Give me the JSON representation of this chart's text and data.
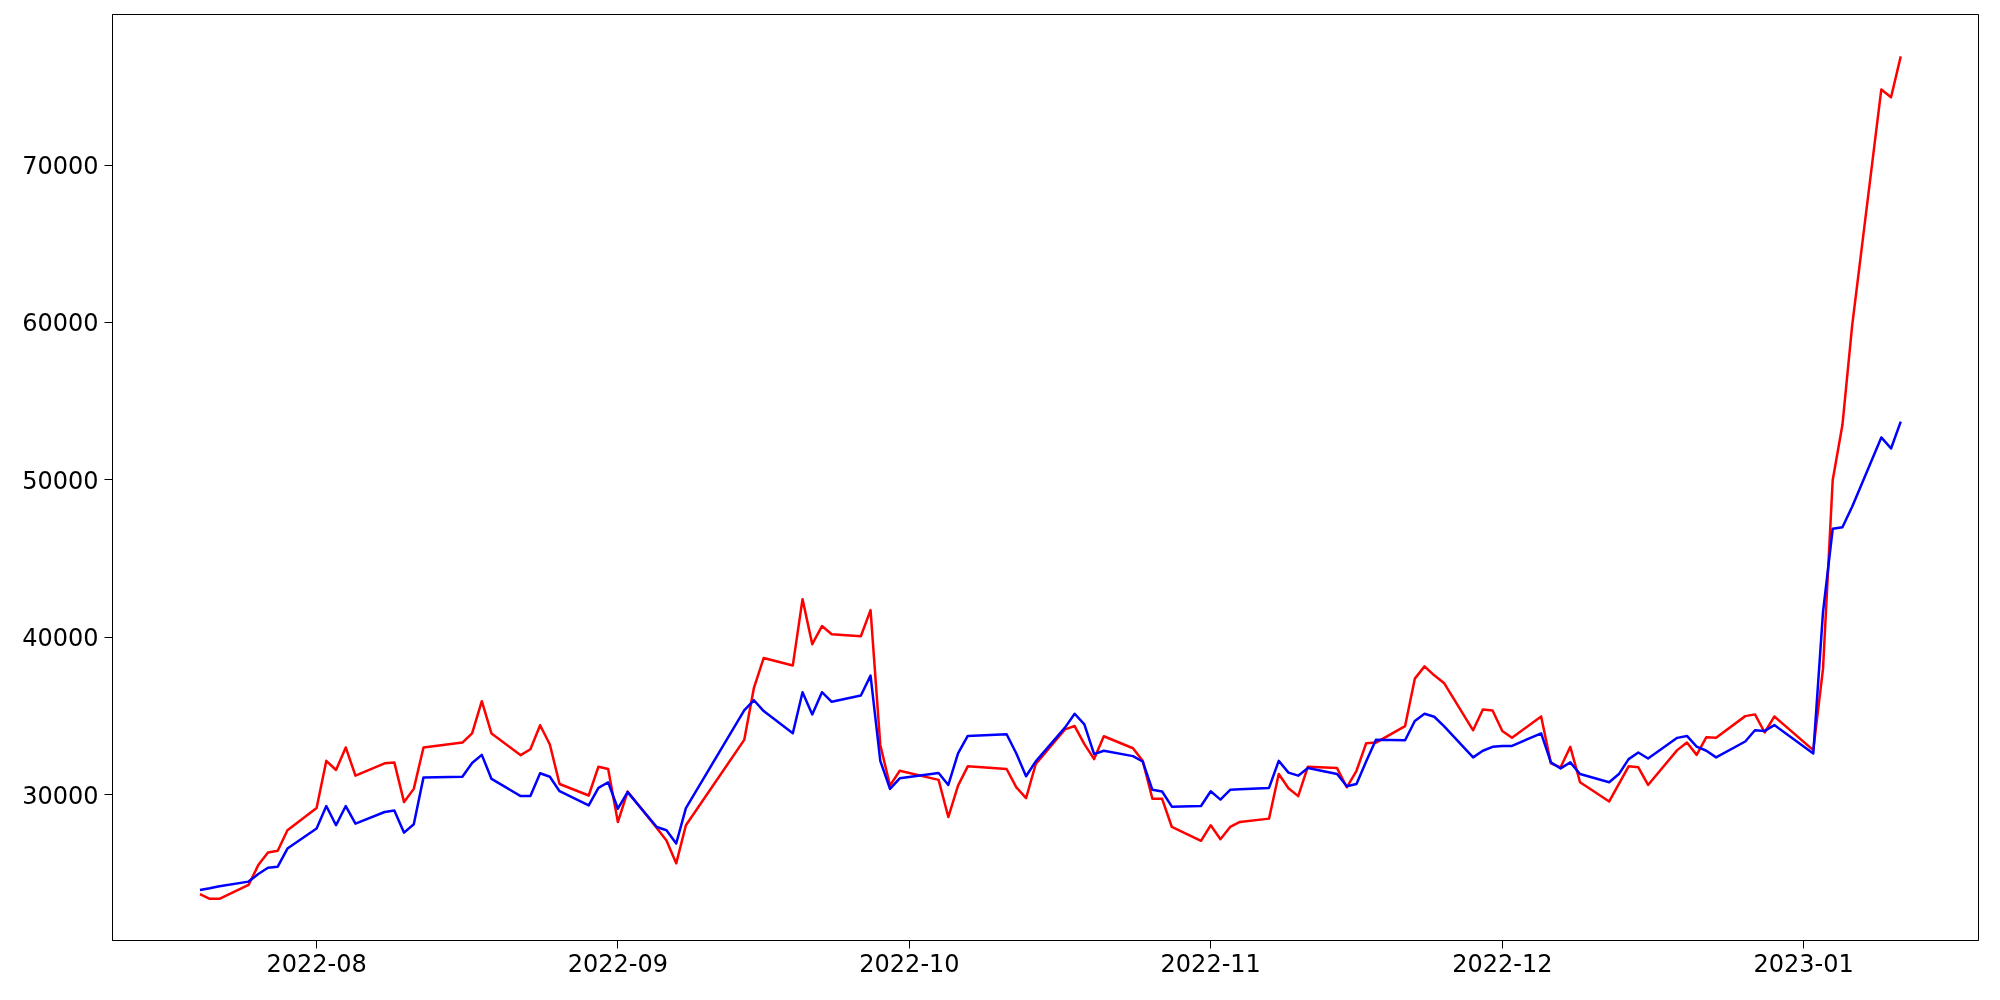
{
  "chart_data": {
    "type": "line",
    "x": [
      "2022-07-20",
      "2022-07-21",
      "2022-07-22",
      "2022-07-25",
      "2022-07-26",
      "2022-07-27",
      "2022-07-28",
      "2022-07-29",
      "2022-08-01",
      "2022-08-02",
      "2022-08-03",
      "2022-08-04",
      "2022-08-05",
      "2022-08-08",
      "2022-08-09",
      "2022-08-10",
      "2022-08-11",
      "2022-08-12",
      "2022-08-16",
      "2022-08-17",
      "2022-08-18",
      "2022-08-19",
      "2022-08-22",
      "2022-08-23",
      "2022-08-24",
      "2022-08-25",
      "2022-08-26",
      "2022-08-29",
      "2022-08-30",
      "2022-08-31",
      "2022-09-01",
      "2022-09-02",
      "2022-09-05",
      "2022-09-06",
      "2022-09-07",
      "2022-09-08",
      "2022-09-14",
      "2022-09-15",
      "2022-09-16",
      "2022-09-19",
      "2022-09-20",
      "2022-09-21",
      "2022-09-22",
      "2022-09-23",
      "2022-09-26",
      "2022-09-27",
      "2022-09-28",
      "2022-09-29",
      "2022-09-30",
      "2022-10-04",
      "2022-10-05",
      "2022-10-06",
      "2022-10-07",
      "2022-10-11",
      "2022-10-12",
      "2022-10-13",
      "2022-10-14",
      "2022-10-17",
      "2022-10-18",
      "2022-10-19",
      "2022-10-20",
      "2022-10-21",
      "2022-10-24",
      "2022-10-25",
      "2022-10-26",
      "2022-10-27",
      "2022-10-28",
      "2022-10-31",
      "2022-11-01",
      "2022-11-02",
      "2022-11-03",
      "2022-11-04",
      "2022-11-07",
      "2022-11-08",
      "2022-11-09",
      "2022-11-10",
      "2022-11-11",
      "2022-11-14",
      "2022-11-15",
      "2022-11-16",
      "2022-11-17",
      "2022-11-18",
      "2022-11-21",
      "2022-11-22",
      "2022-11-23",
      "2022-11-24",
      "2022-11-25",
      "2022-11-28",
      "2022-11-29",
      "2022-11-30",
      "2022-12-01",
      "2022-12-02",
      "2022-12-05",
      "2022-12-06",
      "2022-12-07",
      "2022-12-08",
      "2022-12-09",
      "2022-12-12",
      "2022-12-13",
      "2022-12-14",
      "2022-12-15",
      "2022-12-16",
      "2022-12-19",
      "2022-12-20",
      "2022-12-21",
      "2022-12-22",
      "2022-12-23",
      "2022-12-26",
      "2022-12-27",
      "2022-12-28",
      "2022-12-29",
      "2023-01-02",
      "2023-01-03",
      "2023-01-04",
      "2023-01-05",
      "2023-01-06",
      "2023-01-09",
      "2023-01-10",
      "2023-01-11"
    ],
    "series": [
      {
        "color": "#ff0000",
        "values": [
          23700,
          23400,
          23400,
          24280,
          25540,
          26340,
          26450,
          27750,
          29160,
          32160,
          31580,
          33010,
          31220,
          32000,
          32060,
          29540,
          30380,
          33010,
          33320,
          33910,
          35950,
          33890,
          32520,
          32900,
          34420,
          33200,
          30690,
          29960,
          31790,
          31640,
          28270,
          30210,
          27900,
          27100,
          25650,
          28070,
          33490,
          36800,
          38690,
          38220,
          42430,
          39570,
          40720,
          40200,
          40070,
          41730,
          33170,
          30590,
          31530,
          30950,
          28590,
          30590,
          31810,
          31640,
          30480,
          29790,
          31960,
          34160,
          34370,
          33220,
          32270,
          33720,
          32960,
          32160,
          29750,
          29750,
          27960,
          27080,
          28070,
          27180,
          27960,
          28280,
          28490,
          31320,
          30420,
          29920,
          31790,
          31700,
          30480,
          31530,
          33280,
          33320,
          34370,
          37380,
          38160,
          37590,
          37110,
          34100,
          35420,
          35360,
          34060,
          33620,
          34980,
          32000,
          31750,
          33050,
          30800,
          29580,
          30700,
          31810,
          31750,
          30630,
          32840,
          33320,
          32540,
          33660,
          33620,
          35000,
          35110,
          33960,
          34980,
          32840,
          38000,
          50000,
          53500,
          59800,
          74800,
          74300,
          76900
        ]
      },
      {
        "color": "#0000ff",
        "values": [
          23960,
          24070,
          24200,
          24490,
          24970,
          25370,
          25440,
          26590,
          27860,
          29290,
          28070,
          29290,
          28170,
          28910,
          29010,
          27600,
          28130,
          31110,
          31150,
          32020,
          32540,
          31010,
          29920,
          29920,
          31370,
          31150,
          30230,
          29330,
          30440,
          30800,
          29120,
          30170,
          27960,
          27750,
          26910,
          29160,
          35360,
          36010,
          35320,
          33910,
          36520,
          35110,
          36520,
          35910,
          36310,
          37570,
          32160,
          30380,
          31050,
          31390,
          30630,
          32630,
          33740,
          33850,
          32630,
          31180,
          32130,
          34270,
          35150,
          34480,
          32590,
          32800,
          32460,
          32120,
          30320,
          30210,
          29250,
          29290,
          30230,
          29700,
          30320,
          30360,
          30440,
          32160,
          31410,
          31220,
          31700,
          31320,
          30550,
          30690,
          32130,
          33500,
          33470,
          34690,
          35150,
          34960,
          34370,
          32380,
          32800,
          33050,
          33110,
          33110,
          33910,
          32060,
          31680,
          32060,
          31320,
          30800,
          31320,
          32270,
          32690,
          32310,
          33620,
          33740,
          33060,
          32800,
          32380,
          33390,
          34100,
          34060,
          34430,
          32630,
          41600,
          46900,
          47000,
          48300,
          52700,
          52000,
          53700
        ]
      }
    ],
    "xlim": [
      "2022-07-11",
      "2023-01-19"
    ],
    "xticks": [
      {
        "value": "2022-08-01",
        "label": "2022-08"
      },
      {
        "value": "2022-09-01",
        "label": "2022-09"
      },
      {
        "value": "2022-10-01",
        "label": "2022-10"
      },
      {
        "value": "2022-11-01",
        "label": "2022-11"
      },
      {
        "value": "2022-12-01",
        "label": "2022-12"
      },
      {
        "value": "2023-01-01",
        "label": "2023-01"
      }
    ],
    "ylim": [
      20750,
      79560
    ],
    "yticks": [
      30000,
      40000,
      50000,
      60000,
      70000
    ],
    "grid": false,
    "marker": "none",
    "line_style": "solid"
  }
}
